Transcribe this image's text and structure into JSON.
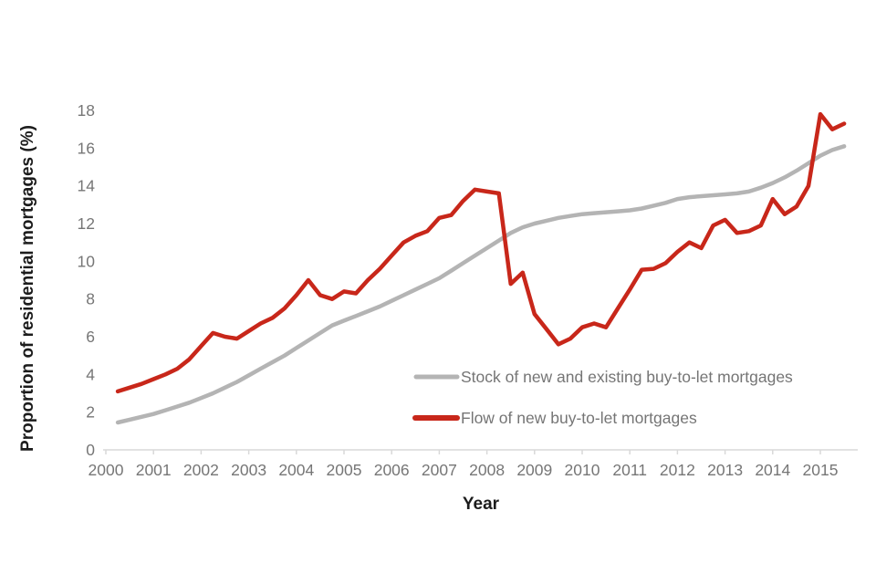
{
  "chart_data": {
    "type": "line",
    "title": "",
    "xlabel": "Year",
    "ylabel": "Proportion of residential mortgages (%)",
    "ylim": [
      0,
      18
    ],
    "xlim": [
      2000,
      2015.85
    ],
    "grid": false,
    "legend_position": "inside-lower-right",
    "y_ticks": [
      0,
      2,
      4,
      6,
      8,
      10,
      12,
      14,
      16,
      18
    ],
    "x_tick_labels": [
      "2000",
      "2001",
      "2002",
      "2003",
      "2004",
      "2005",
      "2006",
      "2007",
      "2008",
      "2009",
      "2010",
      "2011",
      "2012",
      "2013",
      "2014",
      "2015"
    ],
    "x": [
      2000.25,
      2000.5,
      2000.75,
      2001,
      2001.25,
      2001.5,
      2001.75,
      2002,
      2002.25,
      2002.5,
      2002.75,
      2003,
      2003.25,
      2003.5,
      2003.75,
      2004,
      2004.25,
      2004.5,
      2004.75,
      2005,
      2005.25,
      2005.5,
      2005.75,
      2006,
      2006.25,
      2006.5,
      2006.75,
      2007,
      2007.25,
      2007.5,
      2007.75,
      2008,
      2008.25,
      2008.5,
      2008.75,
      2009,
      2009.25,
      2009.5,
      2009.75,
      2010,
      2010.25,
      2010.5,
      2010.75,
      2011,
      2011.25,
      2011.5,
      2011.75,
      2012,
      2012.25,
      2012.5,
      2012.75,
      2013,
      2013.25,
      2013.5,
      2013.75,
      2014,
      2014.25,
      2014.5,
      2014.75,
      2015,
      2015.25,
      2015.5
    ],
    "series": [
      {
        "name": "Stock of new and existing buy-to-let mortgages",
        "color": "#b4b4b4",
        "stroke_width": 4.5,
        "values": [
          1.45,
          1.6,
          1.75,
          1.9,
          2.1,
          2.3,
          2.5,
          2.75,
          3.0,
          3.3,
          3.6,
          3.95,
          4.3,
          4.65,
          5.0,
          5.4,
          5.8,
          6.2,
          6.6,
          6.85,
          7.1,
          7.35,
          7.6,
          7.9,
          8.2,
          8.5,
          8.8,
          9.1,
          9.5,
          9.9,
          10.3,
          10.7,
          11.1,
          11.5,
          11.8,
          12.0,
          12.15,
          12.3,
          12.4,
          12.5,
          12.55,
          12.6,
          12.65,
          12.7,
          12.8,
          12.95,
          13.1,
          13.3,
          13.4,
          13.45,
          13.5,
          13.55,
          13.6,
          13.7,
          13.9,
          14.15,
          14.45,
          14.8,
          15.2,
          15.6,
          15.9,
          16.1
        ]
      },
      {
        "name": "Flow of new buy-to-let mortgages",
        "color": "#c8271a",
        "stroke_width": 4.5,
        "values": [
          3.1,
          3.3,
          3.5,
          3.75,
          4.0,
          4.3,
          4.8,
          5.5,
          6.2,
          6.0,
          5.9,
          6.3,
          6.7,
          7.0,
          7.5,
          8.2,
          9.0,
          8.2,
          8.0,
          8.4,
          8.3,
          9.0,
          9.6,
          10.3,
          11.0,
          11.35,
          11.6,
          12.3,
          12.45,
          13.2,
          13.8,
          13.7,
          13.6,
          8.8,
          9.4,
          7.2,
          6.4,
          5.6,
          5.9,
          6.5,
          6.7,
          6.5,
          7.5,
          8.5,
          9.55,
          9.6,
          9.9,
          10.5,
          11.0,
          10.7,
          11.9,
          12.2,
          11.5,
          11.6,
          11.9,
          13.3,
          12.5,
          12.9,
          14.0,
          17.8,
          17.0,
          17.3
        ]
      }
    ],
    "style": {
      "axis_line_color": "#d9d9d9",
      "tick_label_color": "#767676",
      "axis_title_color": "#1c1c1c",
      "legend_text_color": "#757575",
      "background": "#ffffff"
    }
  }
}
